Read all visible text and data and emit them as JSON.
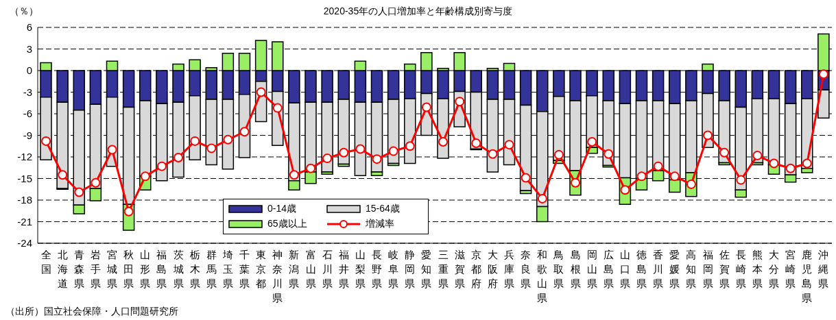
{
  "chart_data": {
    "type": "bar",
    "title": "2020-35年の人口増加率と年齢構成別寄与度",
    "ylabel": "（％）",
    "annotations": [
      "（出所）国立社会保障・人口問題研究所"
    ],
    "categories": [
      "全国",
      "北海道",
      "青森県",
      "岩手県",
      "宮城県",
      "秋田県",
      "山形県",
      "福島県",
      "茨城県",
      "栃木県",
      "群馬県",
      "埼玉県",
      "千葉県",
      "東京都",
      "神奈川県",
      "新潟県",
      "富山県",
      "石川県",
      "福井県",
      "山梨県",
      "長野県",
      "岐阜県",
      "静岡県",
      "愛知県",
      "三重県",
      "滋賀県",
      "京都府",
      "大阪府",
      "兵庫県",
      "奈良県",
      "和歌山県",
      "鳥取県",
      "島根県",
      "岡山県",
      "広島県",
      "山口県",
      "徳島県",
      "香川県",
      "愛媛県",
      "高知県",
      "福岡県",
      "佐賀県",
      "長崎県",
      "熊本県",
      "大分県",
      "宮崎県",
      "鹿児島県",
      "沖縄県"
    ],
    "stacked": true,
    "series": [
      {
        "name": "0-14歳",
        "color": "#333399",
        "values": [
          -3.7,
          -4.4,
          -5.5,
          -4.7,
          -3.7,
          -5.1,
          -4.2,
          -4.6,
          -4.4,
          -3.5,
          -4.0,
          -4.0,
          -3.3,
          -1.5,
          -2.9,
          -4.5,
          -4.4,
          -4.4,
          -4.0,
          -4.4,
          -4.4,
          -4.0,
          -3.9,
          -3.2,
          -3.9,
          -2.9,
          -3.0,
          -4.0,
          -4.0,
          -4.8,
          -5.7,
          -3.6,
          -4.2,
          -3.5,
          -4.2,
          -4.6,
          -4.2,
          -4.2,
          -4.6,
          -4.2,
          -3.2,
          -4.2,
          -5.1,
          -3.9,
          -3.9,
          -4.6,
          -3.9,
          -2.7
        ]
      },
      {
        "name": "15-64歳",
        "color": "#d9d9d9",
        "values": [
          -8.7,
          -12.0,
          -13.2,
          -11.7,
          -9.6,
          -13.5,
          -10.5,
          -10.7,
          -10.4,
          -8.9,
          -9.1,
          -9.7,
          -8.8,
          -5.6,
          -7.5,
          -10.8,
          -9.7,
          -9.7,
          -9.0,
          -10.2,
          -9.7,
          -8.9,
          -9.0,
          -5.8,
          -8.3,
          -4.9,
          -7.9,
          -10.1,
          -9.1,
          -11.9,
          -13.2,
          -8.9,
          -9.7,
          -7.2,
          -9.0,
          -10.3,
          -10.8,
          -9.7,
          -10.6,
          -10.0,
          -7.5,
          -8.6,
          -11.5,
          -8.9,
          -9.2,
          -9.9,
          -9.7,
          -3.9
        ]
      },
      {
        "name": "65歳以上",
        "color": "#99ee66",
        "values": [
          1.1,
          -0.1,
          -1.2,
          -1.7,
          1.3,
          -3.6,
          -1.9,
          0,
          0.9,
          1.5,
          0.4,
          2.4,
          2.4,
          4.2,
          4.0,
          -1.3,
          -1.6,
          -0.3,
          -0.3,
          1.3,
          -0.5,
          -0.3,
          0.9,
          2.5,
          0.3,
          2.5,
          -0.1,
          0.3,
          1.0,
          -0.4,
          -2.1,
          -0.4,
          -3.4,
          -0.8,
          -0.2,
          -3.7,
          -1.6,
          -1.4,
          -1.7,
          -3.3,
          0.9,
          -0.3,
          -1.0,
          -0.3,
          -1.3,
          -1.0,
          -0.6,
          5.1
        ]
      },
      {
        "name": "増減率",
        "type": "line",
        "color": "#ff0000",
        "values": [
          -9.8,
          -14.5,
          -16.9,
          -15.6,
          -11.0,
          -19.6,
          -14.7,
          -13.3,
          -12.1,
          -9.8,
          -10.8,
          -9.6,
          -8.5,
          -3.0,
          -5.2,
          -14.5,
          -13.6,
          -12.2,
          -11.4,
          -10.9,
          -12.3,
          -11.2,
          -10.5,
          -5.1,
          -9.9,
          -4.3,
          -10.1,
          -11.6,
          -10.3,
          -14.9,
          -17.8,
          -11.7,
          -15.6,
          -9.9,
          -11.6,
          -16.6,
          -14.7,
          -13.3,
          -14.7,
          -15.8,
          -9.0,
          -11.4,
          -15.2,
          -11.8,
          -12.9,
          -13.6,
          -12.9,
          -0.5
        ]
      }
    ],
    "ylim": [
      -24,
      6
    ],
    "yticks": [
      -24,
      -21,
      -18,
      -15,
      -12,
      -9,
      -6,
      -3,
      0,
      3,
      6
    ],
    "grid": "y",
    "legend": "bottom left",
    "marker": "circle"
  }
}
